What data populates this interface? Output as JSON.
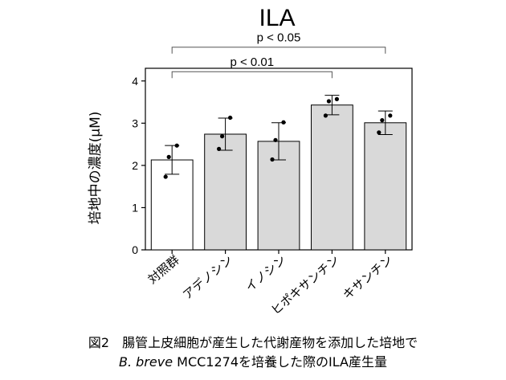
{
  "chart_data": {
    "type": "bar",
    "title": "ILA",
    "ylabel": "培地中の濃度(μM)",
    "xlabel": "",
    "ylim": [
      0,
      4.3
    ],
    "yticks": [
      0,
      1,
      2,
      3,
      4
    ],
    "categories": [
      "対照群",
      "アデノシン",
      "イノシン",
      "ヒポキサンチン",
      "キサンチン"
    ],
    "values": [
      2.13,
      2.74,
      2.57,
      3.43,
      3.01
    ],
    "errors": [
      0.34,
      0.38,
      0.44,
      0.23,
      0.28
    ],
    "points": [
      [
        2.47,
        2.2,
        1.73
      ],
      [
        3.13,
        2.69,
        2.39
      ],
      [
        3.02,
        2.6,
        2.14
      ],
      [
        3.57,
        3.52,
        3.18
      ],
      [
        3.18,
        3.07,
        2.78
      ]
    ],
    "bar_colors": [
      "#ffffff",
      "#d9d9d9",
      "#d9d9d9",
      "#d9d9d9",
      "#d9d9d9"
    ],
    "significance": [
      {
        "from": 0,
        "to": 3,
        "label": "p < 0.01"
      },
      {
        "from": 0,
        "to": 4,
        "label": "p < 0.05"
      }
    ]
  },
  "caption": {
    "line1": "図2　腸管上皮細胞が産生した代謝産物を添加した培地で",
    "line2_italic": "B. breve",
    "line2_rest": " MCC1274を培養した際のILA産生量"
  }
}
